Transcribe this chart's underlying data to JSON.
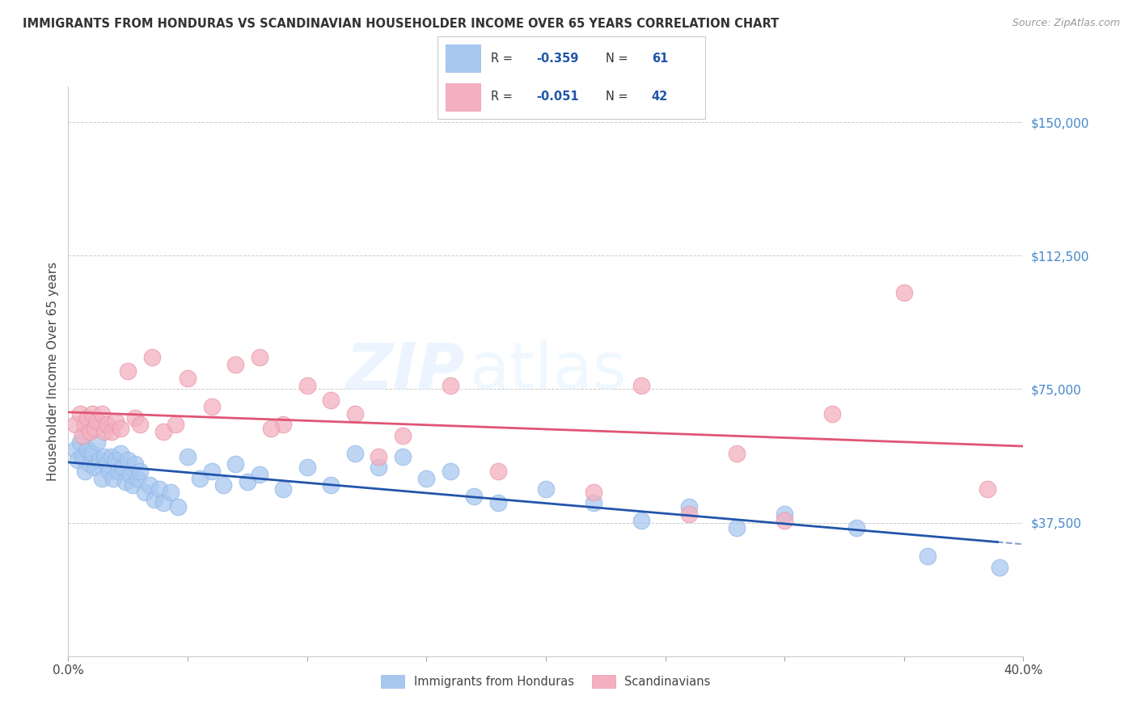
{
  "title": "IMMIGRANTS FROM HONDURAS VS SCANDINAVIAN HOUSEHOLDER INCOME OVER 65 YEARS CORRELATION CHART",
  "source": "Source: ZipAtlas.com",
  "ylabel": "Householder Income Over 65 years",
  "yticks": [
    0,
    37500,
    75000,
    112500,
    150000
  ],
  "ytick_labels": [
    "",
    "$37,500",
    "$75,000",
    "$112,500",
    "$150,000"
  ],
  "xmin": 0.0,
  "xmax": 40.0,
  "ymin": 0,
  "ymax": 160000,
  "legend_bottom1": "Immigrants from Honduras",
  "legend_bottom2": "Scandinavians",
  "blue_color": "#A8C8F0",
  "pink_color": "#F4B0C0",
  "blue_line_color": "#2255AA",
  "pink_line_color": "#E05575",
  "watermark_zip": "ZIP",
  "watermark_atlas": "atlas",
  "blue_r": "-0.359",
  "blue_n": "61",
  "pink_r": "-0.051",
  "pink_n": "42",
  "blue_x": [
    0.3,
    0.4,
    0.5,
    0.6,
    0.7,
    0.8,
    0.9,
    1.0,
    1.1,
    1.2,
    1.3,
    1.4,
    1.5,
    1.6,
    1.7,
    1.8,
    1.9,
    2.0,
    2.1,
    2.2,
    2.3,
    2.4,
    2.5,
    2.6,
    2.7,
    2.8,
    2.9,
    3.0,
    3.2,
    3.4,
    3.6,
    3.8,
    4.0,
    4.3,
    4.6,
    5.0,
    5.5,
    6.0,
    6.5,
    7.0,
    7.5,
    8.0,
    9.0,
    10.0,
    11.0,
    12.0,
    13.0,
    14.0,
    15.0,
    16.0,
    17.0,
    18.0,
    20.0,
    22.0,
    24.0,
    26.0,
    28.0,
    30.0,
    33.0,
    36.0,
    39.0
  ],
  "blue_y": [
    58000,
    55000,
    60000,
    56000,
    52000,
    58000,
    54000,
    57000,
    53000,
    60000,
    55000,
    50000,
    56000,
    54000,
    52000,
    56000,
    50000,
    55000,
    52000,
    57000,
    53000,
    49000,
    55000,
    51000,
    48000,
    54000,
    50000,
    52000,
    46000,
    48000,
    44000,
    47000,
    43000,
    46000,
    42000,
    56000,
    50000,
    52000,
    48000,
    54000,
    49000,
    51000,
    47000,
    53000,
    48000,
    57000,
    53000,
    56000,
    50000,
    52000,
    45000,
    43000,
    47000,
    43000,
    38000,
    42000,
    36000,
    40000,
    36000,
    28000,
    25000
  ],
  "pink_x": [
    0.3,
    0.5,
    0.6,
    0.7,
    0.8,
    0.9,
    1.0,
    1.1,
    1.2,
    1.4,
    1.5,
    1.6,
    1.8,
    2.0,
    2.2,
    2.5,
    2.8,
    3.0,
    3.5,
    4.0,
    4.5,
    5.0,
    6.0,
    7.0,
    8.0,
    9.0,
    10.0,
    11.0,
    12.0,
    13.0,
    14.0,
    16.0,
    18.0,
    22.0,
    26.0,
    28.0,
    30.0,
    32.0,
    35.0,
    38.5,
    24.0,
    8.5
  ],
  "pink_y": [
    65000,
    68000,
    62000,
    65000,
    67000,
    63000,
    68000,
    64000,
    66000,
    68000,
    63000,
    65000,
    63000,
    66000,
    64000,
    80000,
    67000,
    65000,
    84000,
    63000,
    65000,
    78000,
    70000,
    82000,
    84000,
    65000,
    76000,
    72000,
    68000,
    56000,
    62000,
    76000,
    52000,
    46000,
    40000,
    57000,
    38000,
    68000,
    102000,
    47000,
    76000,
    64000
  ]
}
